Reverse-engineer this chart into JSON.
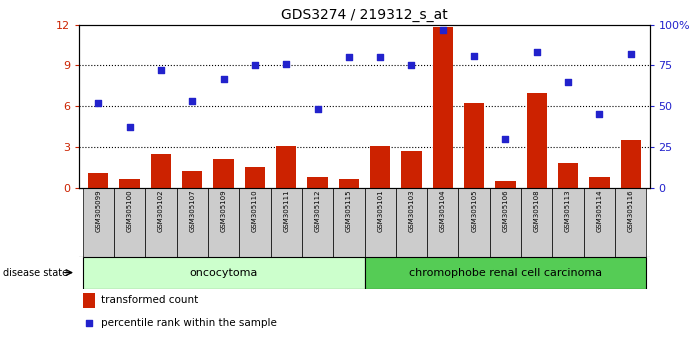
{
  "title": "GDS3274 / 219312_s_at",
  "samples": [
    "GSM305099",
    "GSM305100",
    "GSM305102",
    "GSM305107",
    "GSM305109",
    "GSM305110",
    "GSM305111",
    "GSM305112",
    "GSM305115",
    "GSM305101",
    "GSM305103",
    "GSM305104",
    "GSM305105",
    "GSM305106",
    "GSM305108",
    "GSM305113",
    "GSM305114",
    "GSM305116"
  ],
  "transformed_count": [
    1.1,
    0.6,
    2.5,
    1.2,
    2.1,
    1.5,
    3.1,
    0.8,
    0.6,
    3.1,
    2.7,
    11.8,
    6.2,
    0.5,
    7.0,
    1.8,
    0.8,
    3.5
  ],
  "percentile_rank": [
    52,
    37,
    72,
    53,
    67,
    75,
    76,
    48,
    80,
    80,
    75,
    97,
    81,
    30,
    83,
    65,
    45,
    82
  ],
  "group1_count": 9,
  "group2_count": 9,
  "group1_label": "oncocytoma",
  "group2_label": "chromophobe renal cell carcinoma",
  "disease_state_label": "disease state",
  "bar_color": "#cc2200",
  "dot_color": "#2222cc",
  "group1_bg": "#ccffcc",
  "group2_bg": "#55cc55",
  "ylim_left": [
    0,
    12
  ],
  "ylim_right": [
    0,
    100
  ],
  "yticks_left": [
    0,
    3,
    6,
    9,
    12
  ],
  "yticks_right": [
    0,
    25,
    50,
    75,
    100
  ],
  "legend_bar_label": "transformed count",
  "legend_dot_label": "percentile rank within the sample",
  "background_color": "#ffffff",
  "tick_label_bg": "#cccccc"
}
